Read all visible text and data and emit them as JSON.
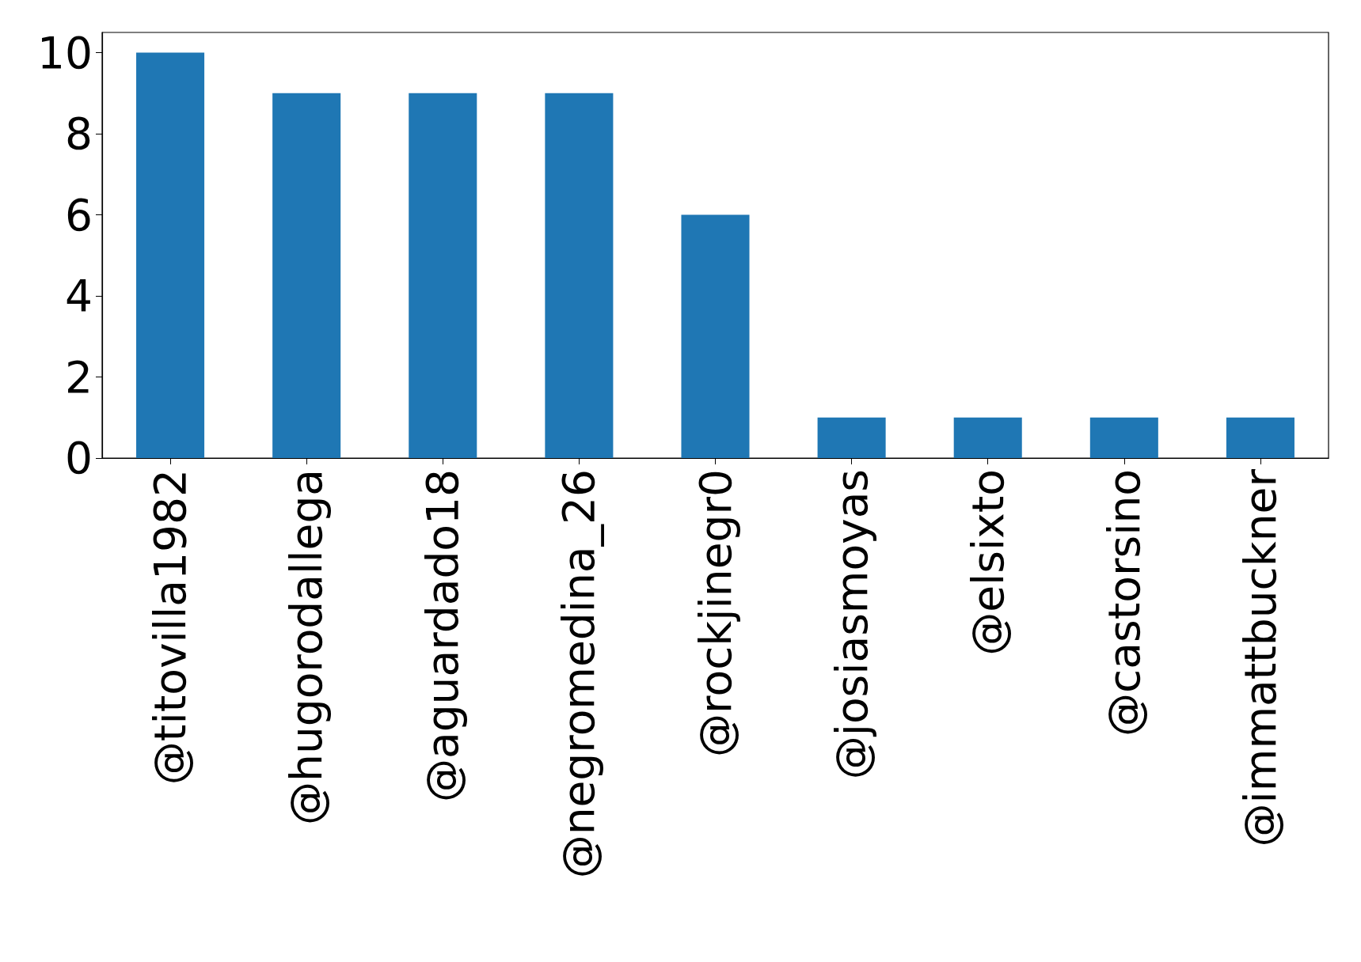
{
  "chart_data": {
    "type": "bar",
    "categories": [
      "@titovilla1982",
      "@hugorodallega",
      "@aguardado18",
      "@negromedina_26",
      "@rockjinegr0",
      "@josiasmoyas",
      "@elsixto",
      "@castorsino",
      "@immattbuckner"
    ],
    "values": [
      10,
      9,
      9,
      9,
      6,
      1,
      1,
      1,
      1
    ],
    "color": "#1f77b4",
    "ylim": [
      0,
      10.5
    ],
    "yticks": [
      0,
      2,
      4,
      6,
      8,
      10
    ]
  }
}
